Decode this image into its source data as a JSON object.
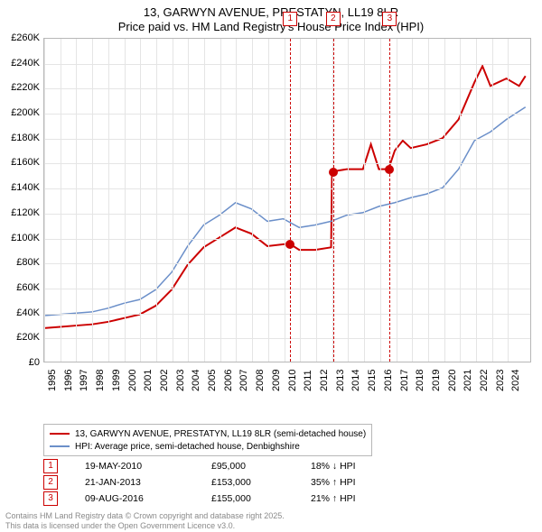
{
  "title": {
    "line1": "13, GARWYN AVENUE, PRESTATYN, LL19 8LR",
    "line2": "Price paid vs. HM Land Registry's House Price Index (HPI)",
    "fontsize": 13,
    "color": "#000000"
  },
  "chart": {
    "type": "line",
    "background_color": "#ffffff",
    "grid_color": "#e5e5e5",
    "axis_color": "#b7b7b7",
    "label_fontsize": 11,
    "xlim": [
      1995,
      2025.5
    ],
    "ylim": [
      0,
      260000
    ],
    "xticks": [
      1995,
      1996,
      1997,
      1998,
      1999,
      2000,
      2001,
      2002,
      2003,
      2004,
      2005,
      2006,
      2007,
      2008,
      2009,
      2010,
      2011,
      2012,
      2013,
      2014,
      2015,
      2016,
      2017,
      2018,
      2019,
      2020,
      2021,
      2022,
      2023,
      2024
    ],
    "yticks": [
      0,
      20000,
      40000,
      60000,
      80000,
      100000,
      120000,
      140000,
      160000,
      180000,
      200000,
      220000,
      240000,
      260000
    ],
    "ytick_labels": [
      "£0",
      "£20K",
      "£40K",
      "£60K",
      "£80K",
      "£100K",
      "£120K",
      "£140K",
      "£160K",
      "£180K",
      "£200K",
      "£220K",
      "£240K",
      "£260K"
    ],
    "series": [
      {
        "name": "13, GARWYN AVENUE, PRESTATYN, LL19 8LR (semi-detached house)",
        "color": "#cc0000",
        "line_width": 2,
        "data": [
          [
            1995,
            27000
          ],
          [
            1996,
            28000
          ],
          [
            1997,
            29000
          ],
          [
            1998,
            30000
          ],
          [
            1999,
            32000
          ],
          [
            2000,
            35000
          ],
          [
            2001,
            38000
          ],
          [
            2002,
            45000
          ],
          [
            2003,
            58000
          ],
          [
            2004,
            78000
          ],
          [
            2005,
            92000
          ],
          [
            2006,
            100000
          ],
          [
            2007,
            108000
          ],
          [
            2008,
            103000
          ],
          [
            2009,
            93000
          ],
          [
            2010.38,
            95000
          ],
          [
            2011,
            90000
          ],
          [
            2012,
            90000
          ],
          [
            2013.0,
            92000
          ],
          [
            2013.06,
            153000
          ],
          [
            2014,
            155000
          ],
          [
            2015,
            155000
          ],
          [
            2015.5,
            175000
          ],
          [
            2016,
            155000
          ],
          [
            2016.6,
            155000
          ],
          [
            2017,
            170000
          ],
          [
            2017.5,
            178000
          ],
          [
            2018,
            172000
          ],
          [
            2019,
            175000
          ],
          [
            2020,
            180000
          ],
          [
            2021,
            195000
          ],
          [
            2022,
            225000
          ],
          [
            2022.5,
            238000
          ],
          [
            2023,
            222000
          ],
          [
            2024,
            228000
          ],
          [
            2024.8,
            222000
          ],
          [
            2025.2,
            230000
          ]
        ]
      },
      {
        "name": "HPI: Average price, semi-detached house, Denbighshire",
        "color": "#6b8fc9",
        "line_width": 1.5,
        "data": [
          [
            1995,
            37000
          ],
          [
            1996,
            38000
          ],
          [
            1997,
            39000
          ],
          [
            1998,
            40000
          ],
          [
            1999,
            43000
          ],
          [
            2000,
            47000
          ],
          [
            2001,
            50000
          ],
          [
            2002,
            58000
          ],
          [
            2003,
            72000
          ],
          [
            2004,
            93000
          ],
          [
            2005,
            110000
          ],
          [
            2006,
            118000
          ],
          [
            2007,
            128000
          ],
          [
            2008,
            123000
          ],
          [
            2009,
            113000
          ],
          [
            2010,
            115000
          ],
          [
            2011,
            108000
          ],
          [
            2012,
            110000
          ],
          [
            2013,
            113000
          ],
          [
            2014,
            118000
          ],
          [
            2015,
            120000
          ],
          [
            2016,
            125000
          ],
          [
            2017,
            128000
          ],
          [
            2018,
            132000
          ],
          [
            2019,
            135000
          ],
          [
            2020,
            140000
          ],
          [
            2021,
            155000
          ],
          [
            2022,
            178000
          ],
          [
            2023,
            185000
          ],
          [
            2024,
            195000
          ],
          [
            2025.2,
            205000
          ]
        ]
      }
    ],
    "sale_markers": [
      {
        "idx": "1",
        "x": 2010.38,
        "y": 95000,
        "color": "#cc0000"
      },
      {
        "idx": "2",
        "x": 2013.06,
        "y": 153000,
        "color": "#cc0000"
      },
      {
        "idx": "3",
        "x": 2016.6,
        "y": 155000,
        "color": "#cc0000"
      }
    ]
  },
  "legend": {
    "items": [
      {
        "color": "#cc0000",
        "label": "13, GARWYN AVENUE, PRESTATYN, LL19 8LR (semi-detached house)"
      },
      {
        "color": "#6b8fc9",
        "label": "HPI: Average price, semi-detached house, Denbighshire"
      }
    ],
    "fontsize": 10
  },
  "sales": [
    {
      "idx": "1",
      "color": "#cc0000",
      "date": "19-MAY-2010",
      "price": "£95,000",
      "delta": "18% ↓ HPI"
    },
    {
      "idx": "2",
      "color": "#cc0000",
      "date": "21-JAN-2013",
      "price": "£153,000",
      "delta": "35% ↑ HPI"
    },
    {
      "idx": "3",
      "color": "#cc0000",
      "date": "09-AUG-2016",
      "price": "£155,000",
      "delta": "21% ↑ HPI"
    }
  ],
  "attribution": {
    "line1": "Contains HM Land Registry data © Crown copyright and database right 2025.",
    "line2": "This data is licensed under the Open Government Licence v3.0.",
    "color": "#8a8a8a",
    "fontsize": 9
  }
}
